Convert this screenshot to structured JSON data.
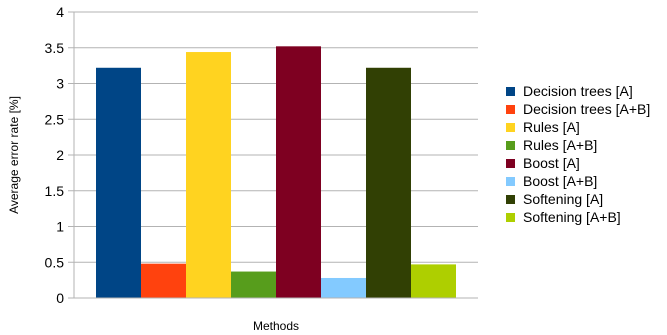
{
  "chart_data": {
    "type": "bar",
    "title": "",
    "xlabel": "Methods",
    "ylabel": "Average error rate [%]",
    "ylim": [
      0,
      4
    ],
    "yticks": [
      0,
      0.5,
      1,
      1.5,
      2,
      2.5,
      3,
      3.5,
      4
    ],
    "ytick_labels": [
      "0",
      "0.5",
      "1",
      "1.5",
      "2",
      "2.5",
      "3",
      "3.5",
      "4"
    ],
    "grid": "horizontal",
    "legend_position": "right",
    "categories": [
      ""
    ],
    "series": [
      {
        "name": "Decision trees [A]",
        "values": [
          3.22
        ],
        "color": "#004586"
      },
      {
        "name": "Decision trees [A+B]",
        "values": [
          0.48
        ],
        "color": "#ff420e"
      },
      {
        "name": "Rules [A]",
        "values": [
          3.44
        ],
        "color": "#ffd320"
      },
      {
        "name": "Rules [A+B]",
        "values": [
          0.37
        ],
        "color": "#579d1c"
      },
      {
        "name": "Boost [A]",
        "values": [
          3.52
        ],
        "color": "#7e0021"
      },
      {
        "name": "Boost [A+B]",
        "values": [
          0.28
        ],
        "color": "#83caff"
      },
      {
        "name": "Softening [A]",
        "values": [
          3.22
        ],
        "color": "#314004"
      },
      {
        "name": "Softening [A+B]",
        "values": [
          0.47
        ],
        "color": "#aecf00"
      }
    ]
  }
}
